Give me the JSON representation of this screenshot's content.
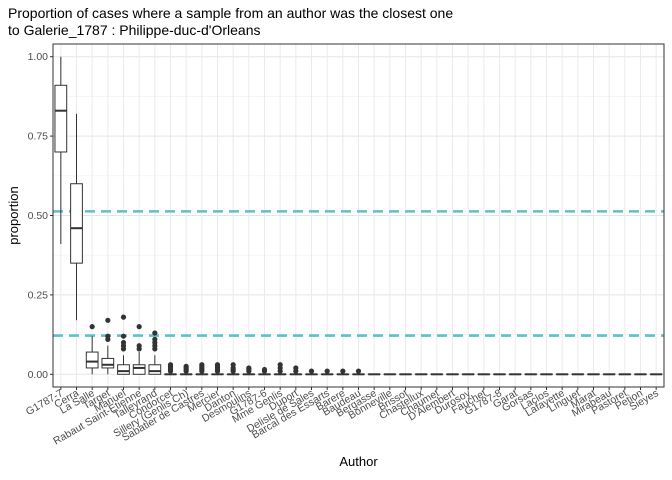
{
  "chart_data": {
    "type": "boxplot",
    "title_lines": [
      "Proportion of cases where a sample from an author was the closest one",
      "to Galerie_1787 : Philippe-duc-d'Orleans"
    ],
    "xlabel": "Author",
    "ylabel": "proportion",
    "ylim": [
      -0.04,
      1.04
    ],
    "yticks": [
      "0.00",
      "0.25",
      "0.50",
      "0.75",
      "1.00"
    ],
    "ytick_values": [
      0,
      0.25,
      0.5,
      0.75,
      1.0
    ],
    "grid": true,
    "hlines": [
      {
        "y": 0.513,
        "color": "#5fbfcc",
        "style": "dashed"
      },
      {
        "y": 0.122,
        "color": "#5fbfcc",
        "style": "dashed"
      }
    ],
    "categories": [
      "G1787-7",
      "Cerra",
      "La Salle",
      "Target",
      "Manuel",
      "Rabaut Saint-Etienne",
      "Talleyrand",
      "Condorcet",
      "Sillery (Genlis Ch)",
      "Sabatier de Castres",
      "Mercier",
      "Danton",
      "Desmoulins",
      "G1787-6",
      "Mme Genlis",
      "Duport",
      "Delisle de Sales",
      "Barcal des Essarts",
      "Barere",
      "Baudeau",
      "Bergasse",
      "Bonneville",
      "Brissot",
      "Chastellux",
      "Chaumet",
      "D'Alembert",
      "Durosoy",
      "Fauchet",
      "G1787-8",
      "Garat",
      "Gorsas",
      "Laclos",
      "Lafayette",
      "Linguet",
      "Marat",
      "Mirabeau",
      "Pastoret",
      "Petion",
      "Sieyes"
    ],
    "boxes": [
      {
        "min": 0.41,
        "q1": 0.7,
        "median": 0.83,
        "q3": 0.91,
        "max": 1.0,
        "outliers": []
      },
      {
        "min": 0.17,
        "q1": 0.35,
        "median": 0.46,
        "q3": 0.6,
        "max": 0.82,
        "outliers": []
      },
      {
        "min": 0.0,
        "q1": 0.02,
        "median": 0.04,
        "q3": 0.07,
        "max": 0.12,
        "outliers": [
          0.15
        ]
      },
      {
        "min": 0.0,
        "q1": 0.02,
        "median": 0.03,
        "q3": 0.05,
        "max": 0.09,
        "outliers": [
          0.11,
          0.12,
          0.17
        ]
      },
      {
        "min": 0.0,
        "q1": 0.0,
        "median": 0.01,
        "q3": 0.03,
        "max": 0.06,
        "outliers": [
          0.08,
          0.09,
          0.1,
          0.12,
          0.18
        ]
      },
      {
        "min": 0.0,
        "q1": 0.0,
        "median": 0.02,
        "q3": 0.03,
        "max": 0.07,
        "outliers": [
          0.08,
          0.09,
          0.15
        ]
      },
      {
        "min": 0.0,
        "q1": 0.0,
        "median": 0.01,
        "q3": 0.03,
        "max": 0.06,
        "outliers": [
          0.08,
          0.09,
          0.1,
          0.11,
          0.13
        ]
      },
      {
        "min": 0,
        "q1": 0,
        "median": 0,
        "q3": 0,
        "max": 0,
        "outliers": [
          0.01,
          0.015,
          0.02,
          0.025,
          0.03
        ]
      },
      {
        "min": 0,
        "q1": 0,
        "median": 0,
        "q3": 0,
        "max": 0,
        "outliers": [
          0.01,
          0.015,
          0.02,
          0.025
        ]
      },
      {
        "min": 0,
        "q1": 0,
        "median": 0,
        "q3": 0,
        "max": 0,
        "outliers": [
          0.01,
          0.015,
          0.02,
          0.025,
          0.03
        ]
      },
      {
        "min": 0,
        "q1": 0,
        "median": 0,
        "q3": 0,
        "max": 0,
        "outliers": [
          0.01,
          0.015,
          0.02,
          0.025,
          0.03
        ]
      },
      {
        "min": 0,
        "q1": 0,
        "median": 0,
        "q3": 0,
        "max": 0,
        "outliers": [
          0.01,
          0.015,
          0.02,
          0.03
        ]
      },
      {
        "min": 0,
        "q1": 0,
        "median": 0,
        "q3": 0,
        "max": 0,
        "outliers": [
          0.01,
          0.015,
          0.02
        ]
      },
      {
        "min": 0,
        "q1": 0,
        "median": 0,
        "q3": 0,
        "max": 0,
        "outliers": [
          0.01,
          0.015
        ]
      },
      {
        "min": 0,
        "q1": 0,
        "median": 0,
        "q3": 0,
        "max": 0,
        "outliers": [
          0.01,
          0.02,
          0.03
        ]
      },
      {
        "min": 0,
        "q1": 0,
        "median": 0,
        "q3": 0,
        "max": 0,
        "outliers": [
          0.01,
          0.02
        ]
      },
      {
        "min": 0,
        "q1": 0,
        "median": 0,
        "q3": 0,
        "max": 0,
        "outliers": [
          0.01
        ]
      },
      {
        "min": 0,
        "q1": 0,
        "median": 0,
        "q3": 0,
        "max": 0,
        "outliers": [
          0.01
        ]
      },
      {
        "min": 0,
        "q1": 0,
        "median": 0,
        "q3": 0,
        "max": 0,
        "outliers": [
          0.01
        ]
      },
      {
        "min": 0,
        "q1": 0,
        "median": 0,
        "q3": 0,
        "max": 0,
        "outliers": [
          0.01
        ]
      },
      {
        "min": 0,
        "q1": 0,
        "median": 0,
        "q3": 0,
        "max": 0,
        "outliers": []
      },
      {
        "min": 0,
        "q1": 0,
        "median": 0,
        "q3": 0,
        "max": 0,
        "outliers": []
      },
      {
        "min": 0,
        "q1": 0,
        "median": 0,
        "q3": 0,
        "max": 0,
        "outliers": []
      },
      {
        "min": 0,
        "q1": 0,
        "median": 0,
        "q3": 0,
        "max": 0,
        "outliers": []
      },
      {
        "min": 0,
        "q1": 0,
        "median": 0,
        "q3": 0,
        "max": 0,
        "outliers": []
      },
      {
        "min": 0,
        "q1": 0,
        "median": 0,
        "q3": 0,
        "max": 0,
        "outliers": []
      },
      {
        "min": 0,
        "q1": 0,
        "median": 0,
        "q3": 0,
        "max": 0,
        "outliers": []
      },
      {
        "min": 0,
        "q1": 0,
        "median": 0,
        "q3": 0,
        "max": 0,
        "outliers": []
      },
      {
        "min": 0,
        "q1": 0,
        "median": 0,
        "q3": 0,
        "max": 0,
        "outliers": []
      },
      {
        "min": 0,
        "q1": 0,
        "median": 0,
        "q3": 0,
        "max": 0,
        "outliers": []
      },
      {
        "min": 0,
        "q1": 0,
        "median": 0,
        "q3": 0,
        "max": 0,
        "outliers": []
      },
      {
        "min": 0,
        "q1": 0,
        "median": 0,
        "q3": 0,
        "max": 0,
        "outliers": []
      },
      {
        "min": 0,
        "q1": 0,
        "median": 0,
        "q3": 0,
        "max": 0,
        "outliers": []
      },
      {
        "min": 0,
        "q1": 0,
        "median": 0,
        "q3": 0,
        "max": 0,
        "outliers": []
      },
      {
        "min": 0,
        "q1": 0,
        "median": 0,
        "q3": 0,
        "max": 0,
        "outliers": []
      },
      {
        "min": 0,
        "q1": 0,
        "median": 0,
        "q3": 0,
        "max": 0,
        "outliers": []
      },
      {
        "min": 0,
        "q1": 0,
        "median": 0,
        "q3": 0,
        "max": 0,
        "outliers": []
      },
      {
        "min": 0,
        "q1": 0,
        "median": 0,
        "q3": 0,
        "max": 0,
        "outliers": []
      },
      {
        "min": 0,
        "q1": 0,
        "median": 0,
        "q3": 0,
        "max": 0,
        "outliers": []
      }
    ]
  }
}
